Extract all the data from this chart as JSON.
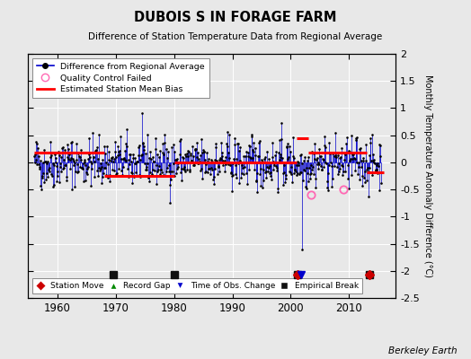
{
  "title": "DUBOIS S IN FORAGE FARM",
  "subtitle": "Difference of Station Temperature Data from Regional Average",
  "ylabel": "Monthly Temperature Anomaly Difference (°C)",
  "xlim": [
    1955,
    2018
  ],
  "ylim": [
    -2.5,
    2.0
  ],
  "yticks": [
    -2.5,
    -2,
    -1.5,
    -1,
    -0.5,
    0,
    0.5,
    1,
    1.5,
    2
  ],
  "xticks": [
    1960,
    1970,
    1980,
    1990,
    2000,
    2010
  ],
  "background_color": "#e8e8e8",
  "plot_background": "#e8e8e8",
  "line_color": "#0000cc",
  "dot_color": "#000000",
  "bias_color": "#ff0000",
  "station_move_color": "#cc0000",
  "empirical_break_color": "#111111",
  "time_of_obs_color": "#0000cc",
  "record_gap_color": "#008800",
  "qc_color": "#ff69b4",
  "watermark": "Berkeley Earth",
  "seed": 42,
  "n_points": 672,
  "start_year": 1956.0,
  "end_year": 2015.5,
  "bias_segments": [
    {
      "x_start": 1956,
      "x_end": 1968,
      "bias": 0.18
    },
    {
      "x_start": 1968,
      "x_end": 1980,
      "bias": -0.25
    },
    {
      "x_start": 1980,
      "x_end": 2001,
      "bias": 0.0
    },
    {
      "x_start": 2001,
      "x_end": 2003,
      "bias": 0.45
    },
    {
      "x_start": 2003,
      "x_end": 2013,
      "bias": 0.18
    },
    {
      "x_start": 2013,
      "x_end": 2016,
      "bias": -0.18
    }
  ],
  "station_moves": [
    2001.2,
    2013.5
  ],
  "empirical_breaks": [
    1969.5,
    1980.0,
    2001.2,
    2013.5
  ],
  "time_of_obs_changes": [
    2001.8
  ],
  "qc_failed_x": [
    2003.5
  ],
  "qc_failed_y": [
    -0.6
  ],
  "qc_failed_x2": [
    2009.0
  ],
  "qc_failed_y2": [
    -0.5
  ],
  "outlier_x": 2002.0,
  "outlier_y": -1.6
}
